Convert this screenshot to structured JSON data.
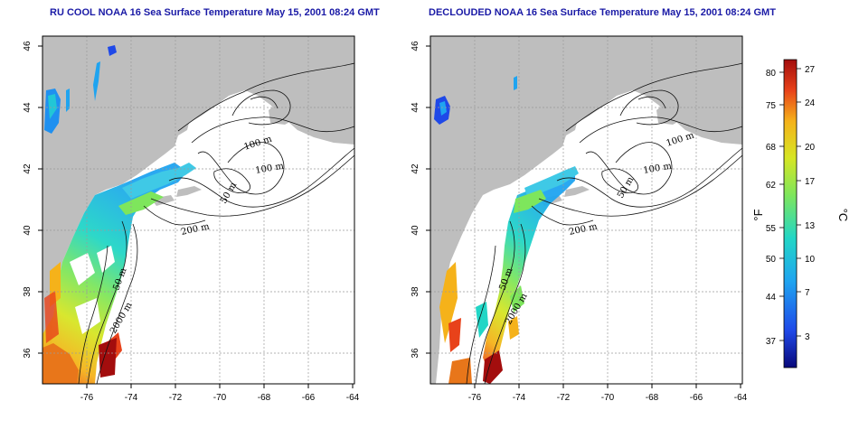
{
  "maps": [
    {
      "id": "left",
      "title": "RU COOL NOAA 16 Sea Surface Temperature May 15, 2001 08:24 GMT",
      "x_ticks": [
        "-76",
        "-74",
        "-72",
        "-70",
        "-68",
        "-66",
        "-64"
      ],
      "y_ticks": [
        "36",
        "38",
        "40",
        "42",
        "44",
        "46"
      ],
      "contour_labels": [
        "100 m",
        "100 m",
        "50 m",
        "200 m",
        "50 m",
        "2000 m"
      ]
    },
    {
      "id": "right",
      "title": "DECLOUDED NOAA 16 Sea Surface Temperature May 15, 2001 08:24 GMT",
      "x_ticks": [
        "-76",
        "-74",
        "-72",
        "-70",
        "-68",
        "-66",
        "-64"
      ],
      "y_ticks": [
        "36",
        "38",
        "40",
        "42",
        "44",
        "46"
      ],
      "contour_labels": [
        "100 m",
        "100 m",
        "50 m",
        "200 m",
        "50 m",
        "2000 m"
      ]
    }
  ],
  "colorbar": {
    "fahrenheit_unit": "°F",
    "celsius_unit": "°C",
    "fahrenheit_ticks": [
      "80",
      "75",
      "68",
      "62",
      "55",
      "50",
      "44",
      "37"
    ],
    "celsius_ticks": [
      "27",
      "24",
      "20",
      "17",
      "13",
      "10",
      "7",
      "3"
    ]
  },
  "colors": {
    "land": "#bebebe",
    "title": "#1a1aa6",
    "scale": [
      "#08087a",
      "#1f49e8",
      "#1fa4f0",
      "#22d6c6",
      "#7ee65c",
      "#d6e624",
      "#f5b21a",
      "#e8421a",
      "#a30d0d"
    ]
  }
}
